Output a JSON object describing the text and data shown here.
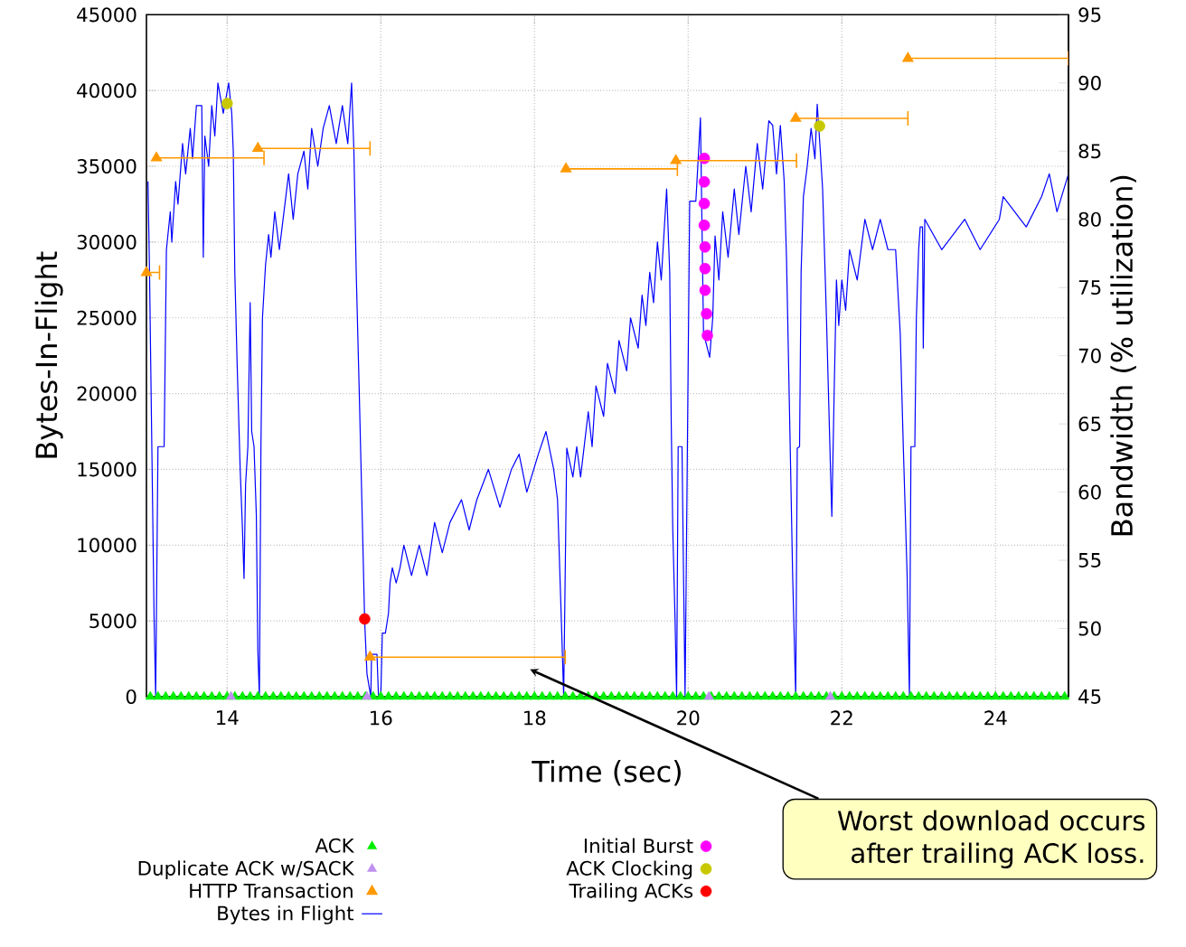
{
  "chart_data": {
    "type": "line",
    "xlabel": "Time (sec)",
    "ylabel": "Bytes-In-Flight",
    "y2label": "Bandwidth (% utilization)",
    "xlim": [
      12.95,
      24.95
    ],
    "xticks": [
      14,
      16,
      18,
      20,
      22,
      24
    ],
    "ylim": [
      0,
      45000
    ],
    "yticks": [
      0,
      5000,
      10000,
      15000,
      20000,
      25000,
      30000,
      35000,
      40000,
      45000
    ],
    "y2lim": [
      45,
      95
    ],
    "y2ticks": [
      45,
      50,
      55,
      60,
      65,
      70,
      75,
      80,
      85,
      90,
      95
    ],
    "grid": true,
    "legend": "bottom",
    "series": [
      {
        "name": "ACK",
        "color": "#00ee00",
        "type": "scatter",
        "marker": "triangle",
        "x": [
          13.0,
          13.1,
          13.2,
          13.3,
          13.4,
          13.5,
          13.6,
          13.7,
          13.8,
          13.9,
          14.0,
          14.1,
          14.2,
          14.3,
          14.4,
          14.5,
          14.6,
          14.7,
          14.8,
          14.9,
          15.0,
          15.1,
          15.2,
          15.3,
          15.4,
          15.5,
          15.6,
          15.7,
          15.8,
          15.9,
          16.0,
          16.1,
          16.2,
          16.3,
          16.4,
          16.5,
          16.6,
          16.7,
          16.8,
          16.9,
          17.0,
          17.1,
          17.2,
          17.3,
          17.4,
          17.5,
          17.6,
          17.7,
          17.8,
          17.9,
          18.0,
          18.1,
          18.2,
          18.3,
          18.4,
          18.5,
          18.6,
          18.7,
          18.8,
          18.9,
          19.0,
          19.1,
          19.2,
          19.3,
          19.4,
          19.5,
          19.6,
          19.7,
          19.8,
          19.9,
          20.0,
          20.1,
          20.2,
          20.3,
          20.4,
          20.5,
          20.6,
          20.7,
          20.8,
          20.9,
          21.0,
          21.1,
          21.2,
          21.3,
          21.4,
          21.5,
          21.6,
          21.7,
          21.8,
          21.9,
          22.0,
          22.1,
          22.2,
          22.3,
          22.4,
          22.5,
          22.6,
          22.7,
          22.8,
          22.9,
          23.0,
          23.1,
          23.2,
          23.3,
          23.4,
          23.5,
          23.6,
          23.7,
          23.8,
          23.9,
          24.0,
          24.1,
          24.2,
          24.3,
          24.4,
          24.5,
          24.6,
          24.7,
          24.8,
          24.9
        ],
        "values": [
          0,
          0,
          0,
          0,
          0,
          0,
          0,
          0,
          0,
          0,
          0,
          0,
          0,
          0,
          0,
          0,
          0,
          0,
          0,
          0,
          0,
          0,
          0,
          0,
          0,
          0,
          0,
          0,
          0,
          0,
          0,
          0,
          0,
          0,
          0,
          0,
          0,
          0,
          0,
          0,
          0,
          0,
          0,
          0,
          0,
          0,
          0,
          0,
          0,
          0,
          0,
          0,
          0,
          0,
          0,
          0,
          0,
          0,
          0,
          0,
          0,
          0,
          0,
          0,
          0,
          0,
          0,
          0,
          0,
          0,
          0,
          0,
          0,
          0,
          0,
          0,
          0,
          0,
          0,
          0,
          0,
          0,
          0,
          0,
          0,
          0,
          0,
          0,
          0,
          0,
          0,
          0,
          0,
          0,
          0,
          0,
          0,
          0,
          0,
          0,
          0,
          0,
          0,
          0,
          0,
          0,
          0,
          0,
          0,
          0,
          0,
          0,
          0,
          0,
          0,
          0,
          0,
          0,
          0,
          0
        ]
      },
      {
        "name": "Duplicate ACK w/SACK",
        "color": "#c090f0",
        "type": "scatter",
        "marker": "triangle",
        "x": [
          14.05,
          15.82,
          20.27,
          21.85
        ],
        "values": [
          0,
          0,
          0,
          0
        ]
      },
      {
        "name": "HTTP Transaction",
        "color": "#ff9900",
        "type": "scatter",
        "marker": "triangle",
        "axis": "y2",
        "x": [
          12.95,
          13.08,
          14.4,
          15.86,
          18.41,
          19.84,
          21.4,
          22.86
        ],
        "values": [
          76.1,
          84.5,
          85.2,
          47.9,
          83.7,
          84.3,
          87.4,
          91.8
        ],
        "xerrors": [
          [
            12.95,
            13.12
          ],
          [
            13.08,
            14.48
          ],
          [
            14.4,
            15.86
          ],
          [
            15.86,
            18.4
          ],
          [
            18.41,
            19.86
          ],
          [
            19.84,
            21.41
          ],
          [
            21.4,
            22.86
          ],
          [
            22.86,
            24.95
          ]
        ]
      },
      {
        "name": "Bytes in Flight",
        "color": "#0000ff",
        "x": [
          12.97,
          12.99,
          13.02,
          13.05,
          13.07,
          13.1,
          13.18,
          13.21,
          13.26,
          13.28,
          13.33,
          13.36,
          13.42,
          13.46,
          13.52,
          13.55,
          13.6,
          13.67,
          13.69,
          13.71,
          13.76,
          13.8,
          13.84,
          13.88,
          13.95,
          14.02,
          14.06,
          14.08,
          14.1,
          14.13,
          14.17,
          14.2,
          14.22,
          14.24,
          14.27,
          14.3,
          14.32,
          14.35,
          14.38,
          14.4,
          14.42,
          14.44,
          14.46,
          14.5,
          14.54,
          14.57,
          14.62,
          14.68,
          14.74,
          14.8,
          14.86,
          14.92,
          15.0,
          15.05,
          15.1,
          15.18,
          15.25,
          15.33,
          15.42,
          15.5,
          15.57,
          15.62,
          15.65,
          15.68,
          15.72,
          15.76,
          15.79,
          15.82,
          15.87,
          15.88,
          15.95,
          15.97,
          16.0,
          16.02,
          16.06,
          16.1,
          16.12,
          16.15,
          16.2,
          16.25,
          16.3,
          16.4,
          16.5,
          16.6,
          16.7,
          16.8,
          16.9,
          17.05,
          17.15,
          17.25,
          17.4,
          17.55,
          17.7,
          17.8,
          17.9,
          18.05,
          18.15,
          18.25,
          18.3,
          18.35,
          18.38,
          18.42,
          18.5,
          18.55,
          18.6,
          18.7,
          18.75,
          18.8,
          18.9,
          18.95,
          19.05,
          19.1,
          19.2,
          19.25,
          19.35,
          19.4,
          19.45,
          19.5,
          19.55,
          19.6,
          19.65,
          19.72,
          19.76,
          19.78,
          19.8,
          19.83,
          19.85,
          19.87,
          19.92,
          19.94,
          19.96,
          20.02,
          20.1,
          20.12,
          20.16,
          20.2,
          20.28,
          20.32,
          20.35,
          20.4,
          20.45,
          20.52,
          20.6,
          20.66,
          20.75,
          20.82,
          20.9,
          20.97,
          21.05,
          21.1,
          21.15,
          21.2,
          21.25,
          21.28,
          21.33,
          21.36,
          21.4,
          21.42,
          21.45,
          21.47,
          21.5,
          21.55,
          21.6,
          21.65,
          21.68,
          21.72,
          21.75,
          21.8,
          21.85,
          21.87,
          21.9,
          21.93,
          21.96,
          22.0,
          22.05,
          22.1,
          22.2,
          22.3,
          22.4,
          22.5,
          22.6,
          22.7,
          22.76,
          22.8,
          22.85,
          22.88,
          22.9,
          22.95,
          22.97,
          23.0,
          23.02,
          23.05,
          23.06,
          23.08,
          23.3,
          23.6,
          23.8,
          24.05,
          24.1,
          24.4,
          24.6,
          24.7,
          24.8,
          24.95
        ],
        "values": [
          34000,
          28000,
          16500,
          5000,
          0,
          16500,
          16500,
          29500,
          32000,
          30000,
          34000,
          32500,
          36500,
          34500,
          37500,
          35500,
          39000,
          39000,
          29000,
          37000,
          35000,
          39000,
          37000,
          40500,
          38500,
          40500,
          38500,
          36000,
          28000,
          22000,
          15000,
          11000,
          7800,
          14000,
          16500,
          26000,
          17500,
          16500,
          12000,
          3000,
          0,
          16500,
          25000,
          28500,
          30500,
          29000,
          32000,
          29500,
          32000,
          34500,
          31500,
          34500,
          36000,
          33500,
          37500,
          35000,
          37500,
          39000,
          36500,
          39000,
          36500,
          40500,
          36000,
          28000,
          20000,
          11500,
          5000,
          1500,
          0,
          2800,
          2800,
          0,
          0,
          4200,
          4200,
          5500,
          7500,
          8500,
          7500,
          8500,
          10000,
          8000,
          10000,
          8000,
          11500,
          9500,
          11500,
          13000,
          11000,
          13000,
          15000,
          12500,
          15000,
          16000,
          13500,
          16000,
          17500,
          15000,
          13000,
          5000,
          0,
          16400,
          14500,
          16500,
          14500,
          18800,
          16500,
          20500,
          18500,
          22000,
          20000,
          23500,
          21500,
          25000,
          23000,
          26500,
          24500,
          28000,
          26000,
          30000,
          27500,
          33500,
          28000,
          18000,
          11000,
          5000,
          0,
          16500,
          16500,
          8000,
          0,
          32700,
          32700,
          34500,
          38200,
          24000,
          22400,
          25000,
          30400,
          27500,
          32000,
          29000,
          33500,
          30500,
          35000,
          32000,
          36500,
          33500,
          38000,
          37700,
          34500,
          37700,
          34000,
          29000,
          16000,
          8000,
          0,
          16400,
          16500,
          28000,
          33000,
          35000,
          37500,
          35500,
          39100,
          36000,
          33500,
          25000,
          15500,
          11900,
          20000,
          27500,
          24500,
          27500,
          25500,
          29500,
          27500,
          31500,
          29500,
          31500,
          29500,
          29500,
          24000,
          16500,
          8000,
          0,
          16500,
          16500,
          25000,
          29500,
          31000,
          31000,
          23000,
          31500,
          29500,
          31500,
          29500,
          31500,
          33000,
          31000,
          33000,
          34500,
          32000,
          34500
        ]
      },
      {
        "name": "Initial Burst",
        "color": "#ff00ff",
        "type": "scatter",
        "marker": "circle",
        "x": [
          20.21,
          20.21,
          20.21,
          20.21,
          20.22,
          20.22,
          20.22,
          20.24,
          20.25
        ],
        "values": [
          35520,
          33970,
          32540,
          31110,
          29680,
          28250,
          26820,
          25270,
          23840
        ]
      },
      {
        "name": "ACK Clocking",
        "color": "#c8c800",
        "type": "scatter",
        "marker": "circle",
        "x": [
          14.0,
          21.71
        ],
        "values": [
          39150,
          37660
        ]
      },
      {
        "name": "Trailing ACKs",
        "color": "#ff0000",
        "type": "scatter",
        "marker": "circle",
        "x": [
          15.79
        ],
        "values": [
          5130
        ]
      }
    ],
    "annotations": [
      "Worst download occurs after trailing ACK loss."
    ]
  }
}
